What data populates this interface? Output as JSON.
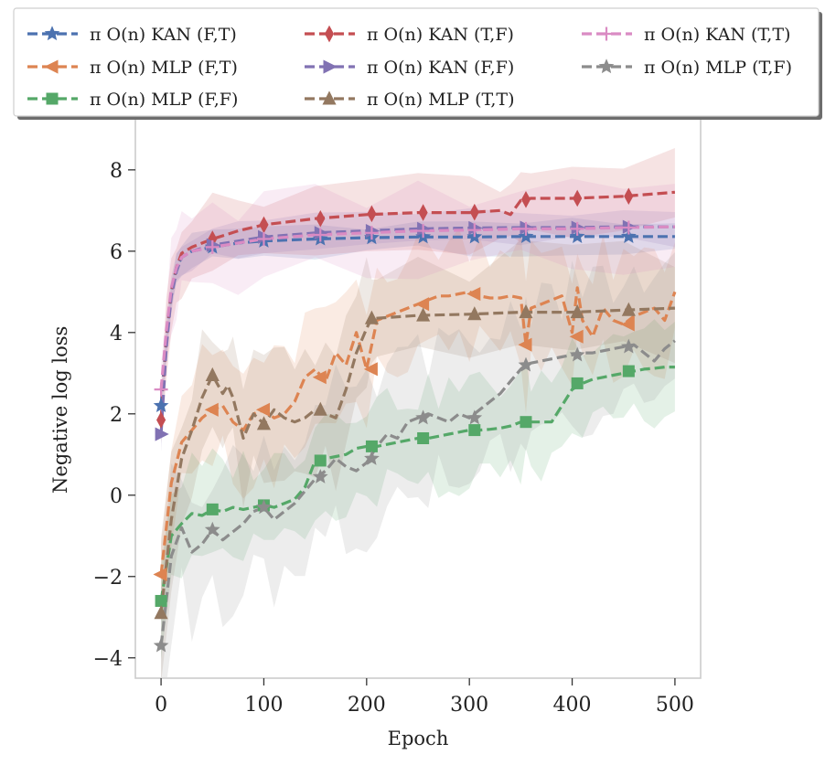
{
  "chart_data": {
    "type": "line",
    "title": "",
    "xlabel": "Epoch",
    "ylabel": "Negative log loss",
    "xlim": [
      -25,
      525
    ],
    "ylim": [
      -4.5,
      9.3
    ],
    "xticks": [
      0,
      100,
      200,
      300,
      400,
      500
    ],
    "yticks": [
      -4,
      -2,
      0,
      2,
      4,
      6,
      8
    ],
    "ytick_labels": [
      "−4",
      "−2",
      "0",
      "2",
      "4",
      "6",
      "8"
    ],
    "legend_position": "top (above plot, 3 columns)",
    "series": [
      {
        "name": "π O(n) KAN (F,T)",
        "color": "#4c72b0",
        "marker": "star",
        "x": [
          0,
          5,
          10,
          15,
          20,
          30,
          50,
          75,
          100,
          150,
          200,
          250,
          300,
          350,
          400,
          450,
          500
        ],
        "y": [
          2.2,
          3.8,
          5.0,
          5.6,
          5.85,
          6.0,
          6.1,
          6.2,
          6.25,
          6.3,
          6.33,
          6.35,
          6.35,
          6.36,
          6.36,
          6.36,
          6.36
        ],
        "band": 0.35,
        "marker_x": [
          0,
          50,
          100,
          155,
          205,
          255,
          305,
          355,
          405,
          455
        ],
        "marker_y": [
          2.2,
          6.1,
          6.25,
          6.3,
          6.33,
          6.35,
          6.35,
          6.36,
          6.36,
          6.36
        ]
      },
      {
        "name": "π O(n) MLP (F,T)",
        "color": "#dd8452",
        "marker": "triangle-left",
        "x": [
          0,
          10,
          20,
          30,
          40,
          50,
          60,
          70,
          80,
          90,
          100,
          110,
          120,
          130,
          140,
          150,
          160,
          170,
          180,
          190,
          200,
          210,
          220,
          230,
          240,
          250,
          260,
          270,
          280,
          290,
          300,
          310,
          320,
          330,
          340,
          350,
          355,
          360,
          370,
          380,
          390,
          400,
          405,
          410,
          420,
          430,
          440,
          450,
          460,
          470,
          480,
          490,
          500
        ],
        "y": [
          -1.95,
          0.3,
          1.3,
          1.6,
          1.9,
          2.1,
          2.2,
          1.8,
          1.6,
          2.0,
          2.1,
          1.9,
          2.0,
          2.3,
          2.9,
          3.1,
          2.8,
          3.5,
          3.2,
          4.0,
          3.1,
          4.3,
          4.4,
          4.5,
          4.6,
          4.7,
          4.8,
          4.9,
          4.9,
          4.95,
          5.0,
          4.9,
          4.85,
          4.85,
          4.9,
          4.85,
          3.7,
          4.6,
          4.7,
          4.8,
          4.9,
          4.0,
          5.1,
          4.3,
          3.9,
          4.6,
          4.3,
          4.2,
          4.4,
          4.5,
          4.6,
          4.3,
          5.0
        ],
        "band": 1.3,
        "marker_x": [
          0,
          50,
          100,
          155,
          205,
          255,
          305,
          355,
          405,
          455
        ],
        "marker_y": [
          -1.95,
          2.1,
          2.1,
          2.9,
          3.1,
          4.7,
          4.95,
          3.7,
          3.9,
          4.2
        ]
      },
      {
        "name": "π O(n) MLP (F,F)",
        "color": "#55a868",
        "marker": "square",
        "x": [
          0,
          10,
          20,
          30,
          40,
          50,
          60,
          70,
          80,
          90,
          100,
          110,
          120,
          130,
          140,
          150,
          160,
          170,
          180,
          190,
          200,
          210,
          220,
          230,
          240,
          250,
          260,
          270,
          280,
          290,
          300,
          310,
          320,
          330,
          340,
          350,
          355,
          360,
          370,
          380,
          390,
          400,
          410,
          420,
          430,
          440,
          450,
          460,
          470,
          480,
          490,
          500
        ],
        "y": [
          -2.6,
          -1.0,
          -0.7,
          -0.45,
          -0.5,
          -0.35,
          -0.4,
          -0.3,
          -0.35,
          -0.3,
          -0.25,
          -0.3,
          -0.2,
          -0.1,
          0.2,
          0.85,
          0.9,
          0.95,
          1.0,
          1.15,
          1.2,
          1.2,
          1.25,
          1.3,
          1.35,
          1.4,
          1.4,
          1.45,
          1.5,
          1.55,
          1.6,
          1.6,
          1.62,
          1.65,
          1.7,
          1.8,
          1.8,
          1.8,
          1.8,
          1.8,
          2.2,
          2.6,
          2.75,
          2.85,
          2.9,
          2.95,
          3.0,
          3.05,
          3.1,
          3.12,
          3.15,
          3.15
        ],
        "band": 1.1,
        "marker_x": [
          0,
          50,
          100,
          155,
          205,
          255,
          305,
          355,
          405,
          455
        ],
        "marker_y": [
          -2.6,
          -0.35,
          -0.25,
          0.85,
          1.2,
          1.4,
          1.6,
          1.8,
          2.75,
          3.05
        ]
      },
      {
        "name": "π O(n) KAN (T,F)",
        "color": "#c44e52",
        "marker": "thin-diamond",
        "x": [
          0,
          5,
          10,
          15,
          20,
          30,
          50,
          75,
          100,
          150,
          200,
          250,
          300,
          330,
          340,
          350,
          360,
          400,
          450,
          500
        ],
        "y": [
          1.85,
          3.8,
          5.0,
          5.6,
          5.95,
          6.1,
          6.3,
          6.5,
          6.65,
          6.8,
          6.9,
          6.95,
          6.95,
          7.0,
          6.9,
          7.25,
          7.3,
          7.3,
          7.35,
          7.45
        ],
        "band": 0.8,
        "marker_x": [
          0,
          50,
          100,
          155,
          205,
          255,
          305,
          355,
          405,
          455
        ],
        "marker_y": [
          1.85,
          6.3,
          6.65,
          6.8,
          6.92,
          6.95,
          6.96,
          7.27,
          7.3,
          7.35
        ]
      },
      {
        "name": "π O(n) KAN (F,F)",
        "color": "#8172b3",
        "marker": "triangle-right",
        "x": [
          0,
          5,
          10,
          15,
          20,
          30,
          50,
          75,
          100,
          150,
          200,
          250,
          300,
          350,
          400,
          450,
          500
        ],
        "y": [
          1.5,
          3.6,
          4.9,
          5.5,
          5.85,
          6.0,
          6.15,
          6.25,
          6.35,
          6.45,
          6.5,
          6.55,
          6.57,
          6.58,
          6.58,
          6.6,
          6.6
        ],
        "band": 0.35,
        "marker_x": [
          0,
          50,
          100,
          155,
          205,
          255,
          305,
          355,
          405,
          455
        ],
        "marker_y": [
          1.5,
          6.15,
          6.35,
          6.45,
          6.5,
          6.55,
          6.57,
          6.58,
          6.58,
          6.6
        ]
      },
      {
        "name": "π O(n) MLP (T,T)",
        "color": "#937860",
        "marker": "triangle-up",
        "x": [
          0,
          10,
          20,
          30,
          40,
          50,
          60,
          65,
          70,
          80,
          90,
          100,
          110,
          120,
          130,
          140,
          150,
          160,
          170,
          180,
          190,
          200,
          205,
          210,
          250,
          300,
          350,
          400,
          450,
          500
        ],
        "y": [
          -2.9,
          -0.6,
          0.9,
          1.6,
          2.4,
          2.95,
          2.5,
          2.7,
          2.4,
          1.4,
          2.0,
          1.75,
          2.1,
          1.9,
          1.8,
          1.9,
          2.1,
          2.0,
          1.9,
          2.6,
          3.5,
          4.1,
          4.35,
          4.35,
          4.42,
          4.45,
          4.5,
          4.5,
          4.55,
          4.6
        ],
        "band": 1.3,
        "marker_x": [
          0,
          50,
          100,
          155,
          205,
          255,
          305,
          355,
          405,
          455
        ],
        "marker_y": [
          -2.9,
          2.95,
          1.75,
          2.1,
          4.35,
          4.42,
          4.45,
          4.5,
          4.5,
          4.55
        ]
      },
      {
        "name": "π O(n) KAN (T,T)",
        "color": "#da8bc3",
        "marker": "plus",
        "x": [
          0,
          5,
          10,
          15,
          20,
          30,
          50,
          75,
          100,
          150,
          200,
          250,
          300,
          350,
          400,
          450,
          500
        ],
        "y": [
          2.6,
          4.0,
          5.1,
          5.6,
          5.85,
          6.0,
          6.1,
          6.2,
          6.3,
          6.4,
          6.45,
          6.5,
          6.52,
          6.55,
          6.55,
          6.58,
          6.6
        ],
        "band": 0.9,
        "marker_x": [
          0,
          50,
          100,
          155,
          205,
          255,
          305,
          355,
          405,
          455
        ],
        "marker_y": [
          2.6,
          6.1,
          6.3,
          6.4,
          6.45,
          6.5,
          6.52,
          6.55,
          6.55,
          6.58
        ]
      },
      {
        "name": "π O(n) MLP (T,F)",
        "color": "#8c8c8c",
        "marker": "star",
        "x": [
          0,
          10,
          20,
          30,
          40,
          50,
          60,
          70,
          80,
          90,
          100,
          110,
          120,
          130,
          140,
          150,
          160,
          170,
          180,
          190,
          200,
          210,
          220,
          230,
          240,
          250,
          260,
          270,
          280,
          290,
          300,
          310,
          320,
          330,
          340,
          350,
          355,
          360,
          370,
          380,
          390,
          400,
          410,
          420,
          430,
          440,
          450,
          460,
          470,
          480,
          490,
          500
        ],
        "y": [
          -3.7,
          -1.5,
          -0.8,
          -1.4,
          -1.2,
          -0.85,
          -1.1,
          -0.9,
          -0.7,
          -0.4,
          -0.3,
          -0.6,
          -0.4,
          -0.2,
          0.1,
          0.4,
          0.6,
          0.9,
          0.7,
          0.6,
          0.8,
          1.2,
          1.5,
          1.4,
          1.8,
          1.9,
          2.0,
          1.9,
          1.8,
          2.0,
          1.9,
          2.1,
          2.3,
          2.5,
          2.8,
          3.1,
          3.2,
          3.25,
          3.3,
          3.35,
          3.4,
          3.45,
          3.5,
          3.5,
          3.55,
          3.6,
          3.65,
          3.7,
          3.5,
          3.3,
          3.6,
          3.8
        ],
        "band": 1.6,
        "marker_x": [
          0,
          50,
          100,
          155,
          205,
          255,
          305,
          355,
          405,
          455
        ],
        "marker_y": [
          -3.7,
          -0.85,
          -0.3,
          0.45,
          0.9,
          1.9,
          1.9,
          3.2,
          3.45,
          3.65
        ]
      }
    ]
  }
}
